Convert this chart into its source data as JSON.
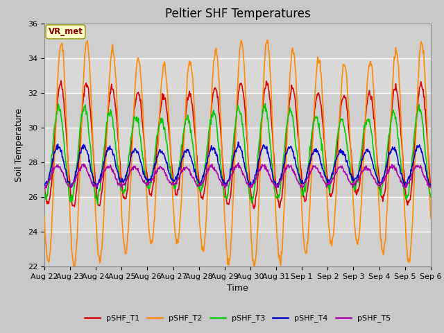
{
  "title": "Peltier SHF Temperatures",
  "ylabel": "Soil Temperature",
  "xlabel": "Time",
  "annotation_text": "VR_met",
  "ylim": [
    22,
    36
  ],
  "yticks": [
    22,
    24,
    26,
    28,
    30,
    32,
    34,
    36
  ],
  "xtick_labels": [
    "Aug 22",
    "Aug 23",
    "Aug 24",
    "Aug 25",
    "Aug 26",
    "Aug 27",
    "Aug 28",
    "Aug 29",
    "Aug 30",
    "Aug 31",
    "Sep 1",
    "Sep 2",
    "Sep 3",
    "Sep 4",
    "Sep 5",
    "Sep 6"
  ],
  "series_colors": [
    "#dd0000",
    "#ff8800",
    "#00cc00",
    "#0000cc",
    "#aa00aa"
  ],
  "series_labels": [
    "pSHF_T1",
    "pSHF_T2",
    "pSHF_T3",
    "pSHF_T4",
    "pSHF_T5"
  ],
  "line_width": 1.2,
  "background_color": "#c8c8c8",
  "plot_bg_color": "#d8d8d8",
  "title_fontsize": 12,
  "label_fontsize": 9,
  "tick_fontsize": 8,
  "grid_color": "#bbbbbb",
  "n_days": 15,
  "points_per_day": 48,
  "T1_mean": 29.0,
  "T1_amp": 3.2,
  "T1_phase": 0.38,
  "T2_mean": 28.5,
  "T2_amp": 5.8,
  "T2_phase": 0.4,
  "T3_mean": 28.5,
  "T3_amp": 2.3,
  "T3_phase": 0.3,
  "T4_mean": 27.8,
  "T4_amp": 1.0,
  "T4_phase": 0.28,
  "T5_mean": 27.2,
  "T5_amp": 0.55,
  "T5_phase": 0.25
}
